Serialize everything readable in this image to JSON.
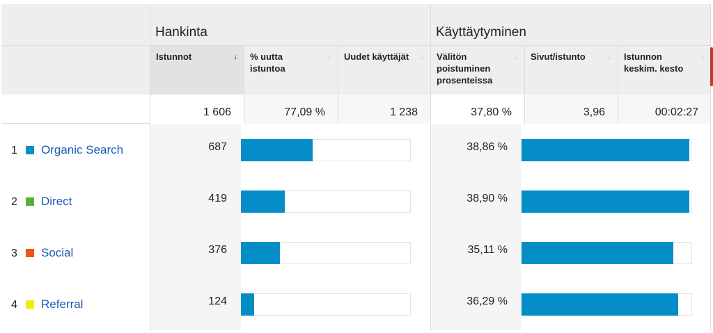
{
  "groups": {
    "acquisition": "Hankinta",
    "behavior": "Käyttäytyminen"
  },
  "columns": {
    "sessions": "Istunnot",
    "new_sessions_pct": "% uutta istuntoa",
    "new_users": "Uudet käyttäjät",
    "bounce_rate": "Välitön poistuminen prosenteissa",
    "pages_per_session": "Sivut/istunto",
    "avg_session_duration": "Istunnon keskim. kesto"
  },
  "totals": {
    "sessions": "1 606",
    "new_sessions_pct": "77,09 %",
    "new_users": "1 238",
    "bounce_rate": "37,80 %",
    "pages_per_session": "3,96",
    "avg_session_duration": "00:02:27"
  },
  "rows": [
    {
      "index": "1",
      "label": "Organic Search",
      "color": "#058dc7",
      "sessions": "687",
      "sessions_share": 0.4278,
      "bounce_rate": "38,86 %",
      "bounce_share": 0.9999
    },
    {
      "index": "2",
      "label": "Direct",
      "color": "#50b432",
      "sessions": "419",
      "sessions_share": 0.2609,
      "bounce_rate": "38,90 %",
      "bounce_share": 1.0
    },
    {
      "index": "3",
      "label": "Social",
      "color": "#ed561b",
      "sessions": "376",
      "sessions_share": 0.2341,
      "bounce_rate": "35,11 %",
      "bounce_share": 0.9026
    },
    {
      "index": "4",
      "label": "Referral",
      "color": "#edef00",
      "sessions": "124",
      "sessions_share": 0.0772,
      "bounce_rate": "36,29 %",
      "bounce_share": 0.9329
    }
  ],
  "icons": {
    "sort_active": "↓",
    "sort_inactive": "↓"
  },
  "colors": {
    "bar": "#058dc7",
    "link": "#1a5bb8"
  }
}
